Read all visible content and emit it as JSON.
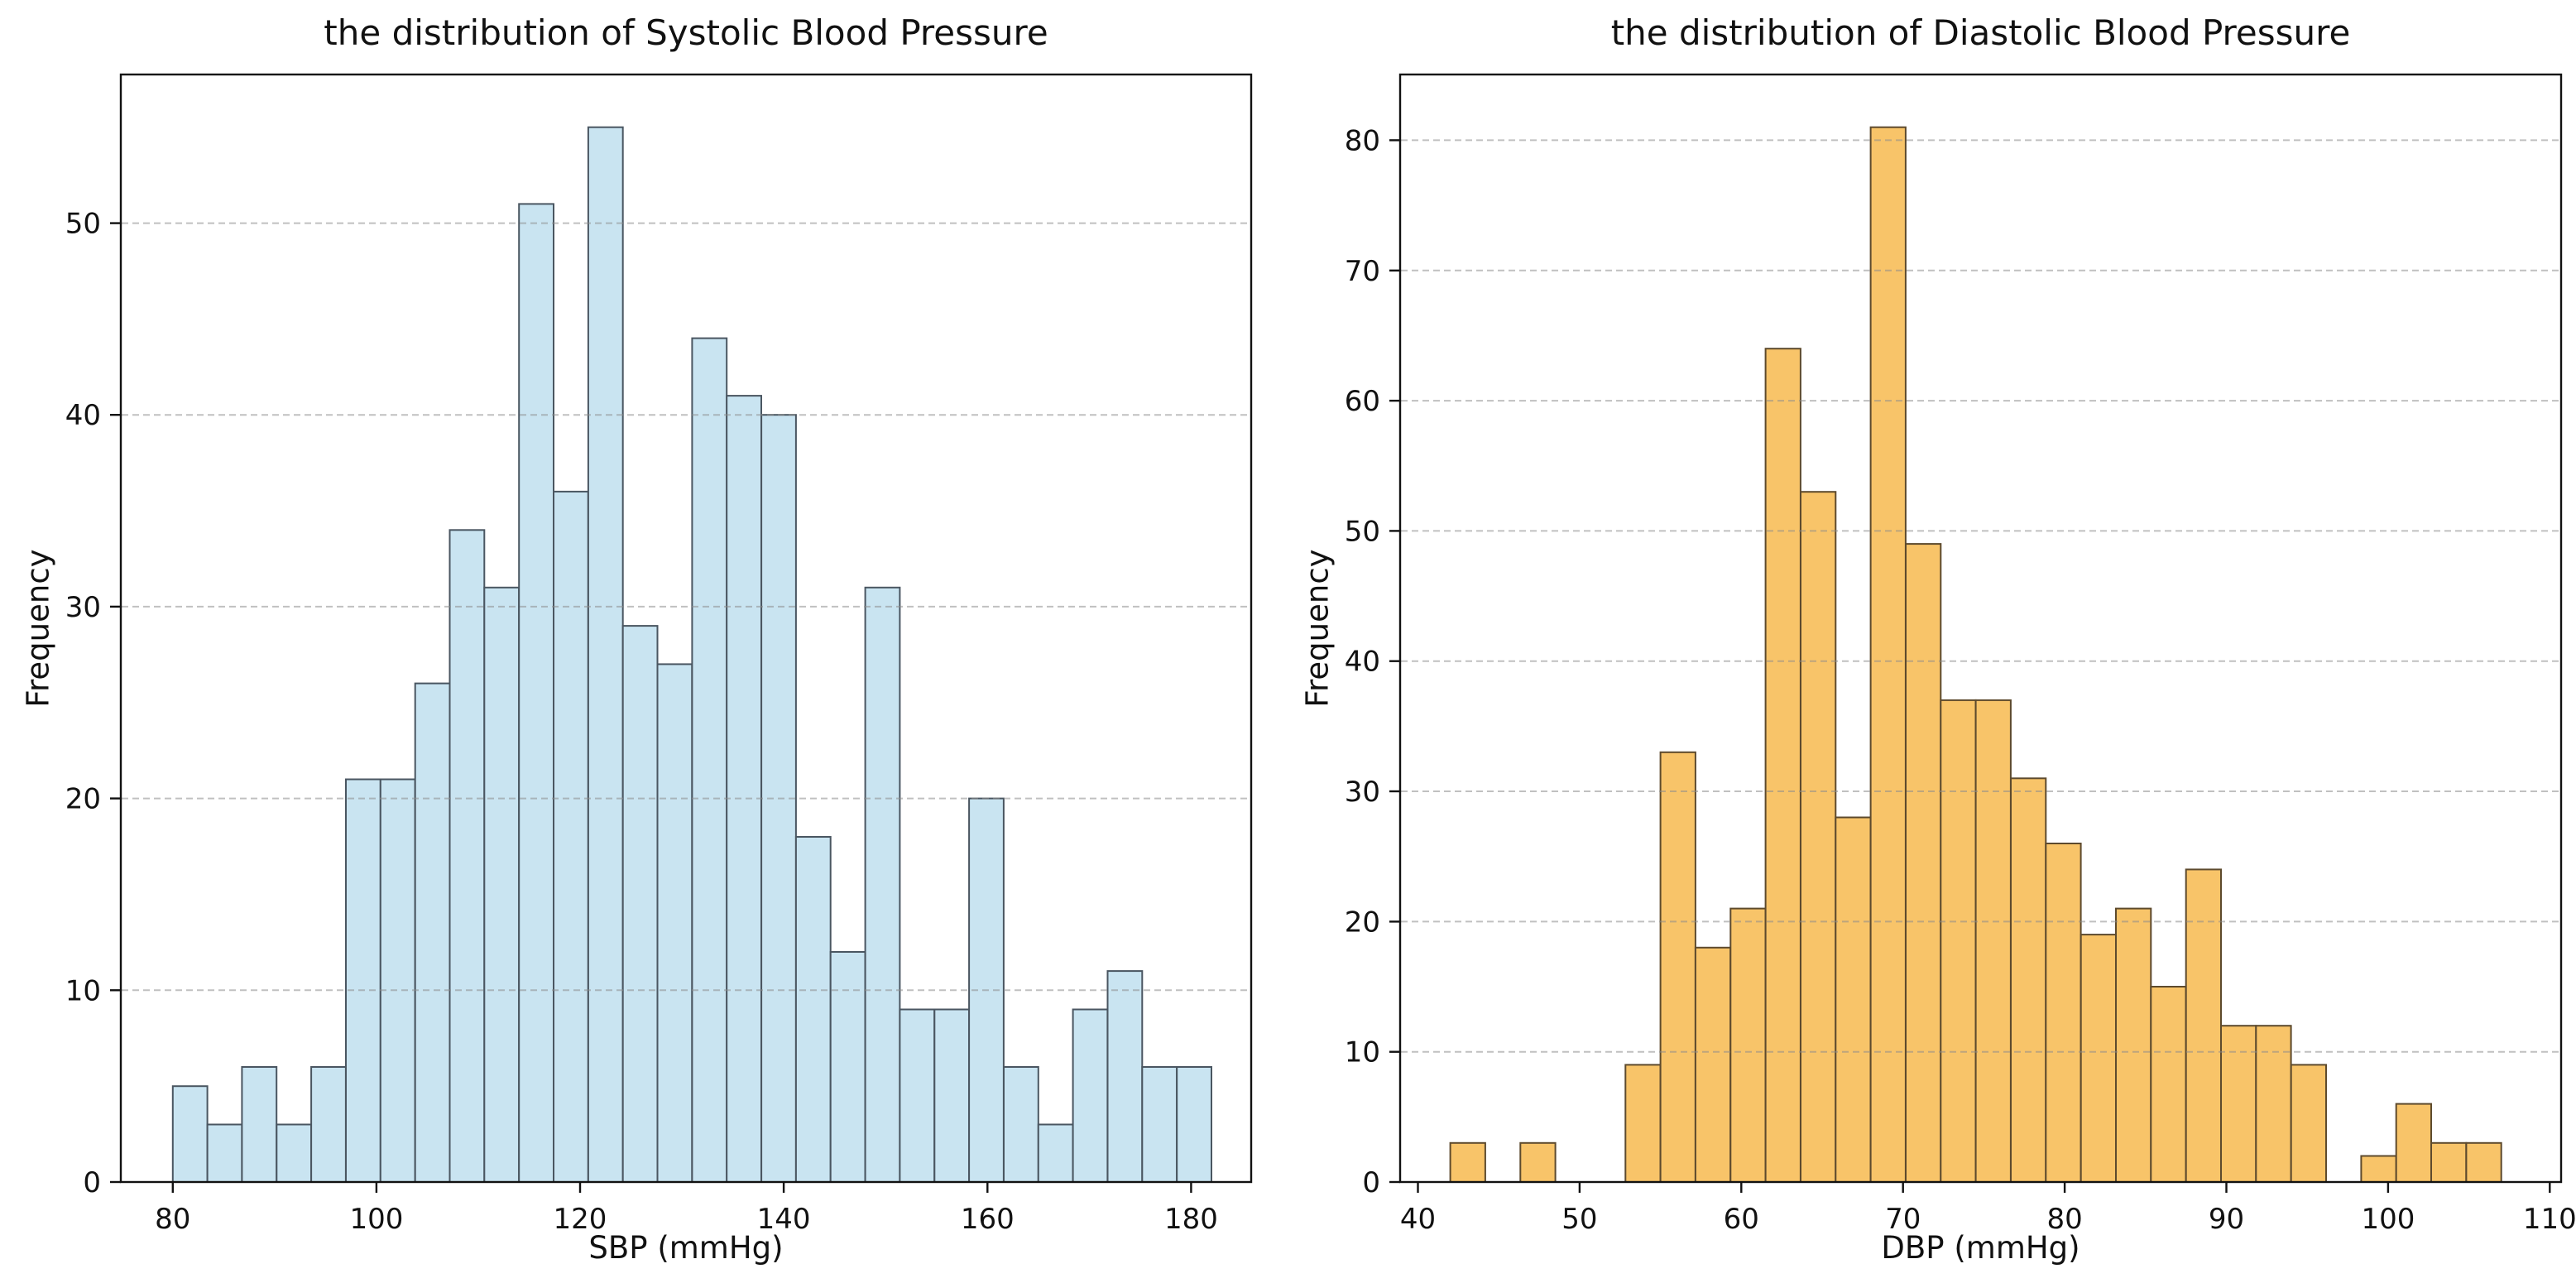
{
  "chart_data": [
    {
      "type": "bar",
      "subtype": "histogram",
      "title": "the distribution of Systolic Blood Pressure",
      "xlabel": "SBP (mmHg)",
      "ylabel": "Frequency",
      "bin_start": 80,
      "bin_width": 3.4,
      "values": [
        5,
        3,
        6,
        3,
        6,
        21,
        21,
        26,
        34,
        31,
        51,
        36,
        55,
        29,
        27,
        44,
        41,
        40,
        18,
        12,
        31,
        9,
        9,
        20,
        6,
        3,
        9,
        11,
        6,
        6
      ],
      "total_count": 619,
      "xticks": [
        80,
        100,
        120,
        140,
        160,
        180
      ],
      "yticks": [
        0,
        10,
        20,
        30,
        40,
        50
      ],
      "xlim": [
        74.9,
        185.9
      ],
      "ylim": [
        0,
        57.75
      ],
      "grid": {
        "axis": "y",
        "style": "dashed",
        "color": "#b0b0b0"
      },
      "bar_fill": "#c9e4f1",
      "bar_edge": "#4a5661"
    },
    {
      "type": "bar",
      "subtype": "histogram",
      "title": "the distribution of Diastolic Blood Pressure",
      "xlabel": "DBP (mmHg)",
      "ylabel": "Frequency",
      "bin_start": 42,
      "bin_width": 2.16667,
      "values": [
        3,
        0,
        3,
        0,
        0,
        9,
        33,
        18,
        21,
        64,
        53,
        28,
        81,
        49,
        37,
        37,
        31,
        26,
        19,
        21,
        15,
        24,
        12,
        12,
        9,
        0,
        2,
        6,
        3,
        3
      ],
      "total_count": 619,
      "xticks": [
        40,
        50,
        60,
        70,
        80,
        90,
        100,
        110
      ],
      "yticks": [
        0,
        10,
        20,
        30,
        40,
        50,
        60,
        70,
        80
      ],
      "xlim": [
        38.9,
        110.7
      ],
      "ylim": [
        0,
        85.05
      ],
      "grid": {
        "axis": "y",
        "style": "dashed",
        "color": "#b0b0b0"
      },
      "bar_fill": "#f8c469",
      "bar_edge": "#5d4a2d"
    }
  ]
}
